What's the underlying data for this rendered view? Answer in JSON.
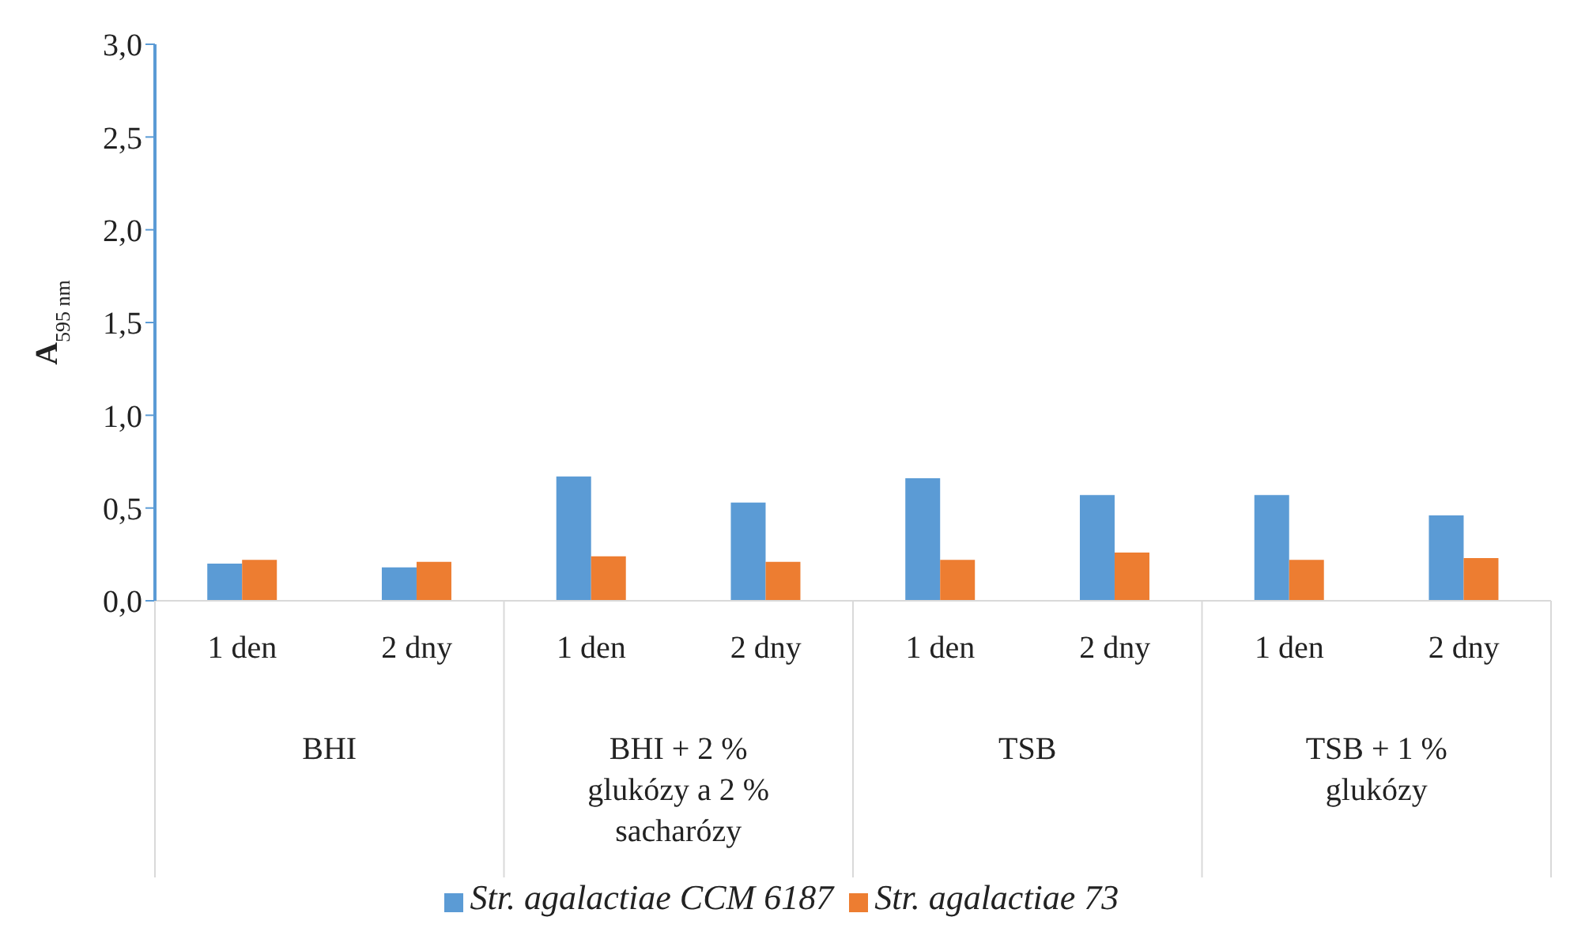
{
  "chart_data": {
    "type": "bar",
    "ylabel": "A$_{595 nm}$",
    "categories": [
      "1 den",
      "2 dny",
      "1 den",
      "2 dny",
      "1 den",
      "2 dny",
      "1 den",
      "2 dny"
    ],
    "annotations": [
      "BHI",
      "BHI + 2 % glukózy a 2 % sacharózy",
      "TSB",
      "TSB + 1 % glukózy"
    ],
    "series": [
      {
        "name": "Str. agalactiae CCM 6187",
        "color": "#5b9bd5",
        "values": [
          0.2,
          0.18,
          0.67,
          0.53,
          0.66,
          0.57,
          0.57,
          0.46
        ]
      },
      {
        "name": "Str. agalactiae 73",
        "color": "#ed7d31",
        "values": [
          0.22,
          0.21,
          0.24,
          0.21,
          0.22,
          0.26,
          0.22,
          0.23
        ]
      }
    ],
    "ylim": [
      0,
      3
    ],
    "yticks": [
      {
        "value": 0,
        "label": "0,0"
      },
      {
        "value": 0.5,
        "label": "0,5"
      },
      {
        "value": 1,
        "label": "1,0"
      },
      {
        "value": 1.5,
        "label": "1,5"
      },
      {
        "value": 2,
        "label": "2,0"
      },
      {
        "value": 2.5,
        "label": "2,5"
      },
      {
        "value": 3,
        "label": "3,0"
      }
    ],
    "grid": false,
    "legend": "bottom"
  }
}
